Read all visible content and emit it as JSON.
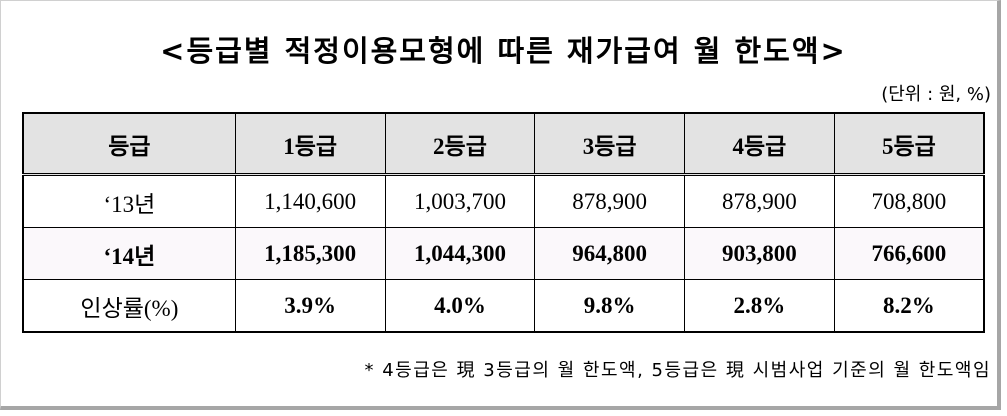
{
  "title": "<등급별 적정이용모형에 따른 재가급여 월 한도액>",
  "unit_note": "(단위 : 원, %)",
  "table": {
    "headers": [
      "등급",
      "1등급",
      "2등급",
      "3등급",
      "4등급",
      "5등급"
    ],
    "rows": [
      {
        "label": "‘13년",
        "values": [
          "1,140,600",
          "1,003,700",
          "878,900",
          "878,900",
          "708,800"
        ]
      },
      {
        "label": "‘14년",
        "values": [
          "1,185,300",
          "1,044,300",
          "964,800",
          "903,800",
          "766,600"
        ]
      },
      {
        "label": "인상률(%)",
        "values": [
          "3.9%",
          "4.0%",
          "9.8%",
          "2.8%",
          "8.2%"
        ]
      }
    ]
  },
  "footnote": "* 4등급은 現 3등급의 월 한도액, 5등급은 現 시범사업 기준의 월 한도액임"
}
